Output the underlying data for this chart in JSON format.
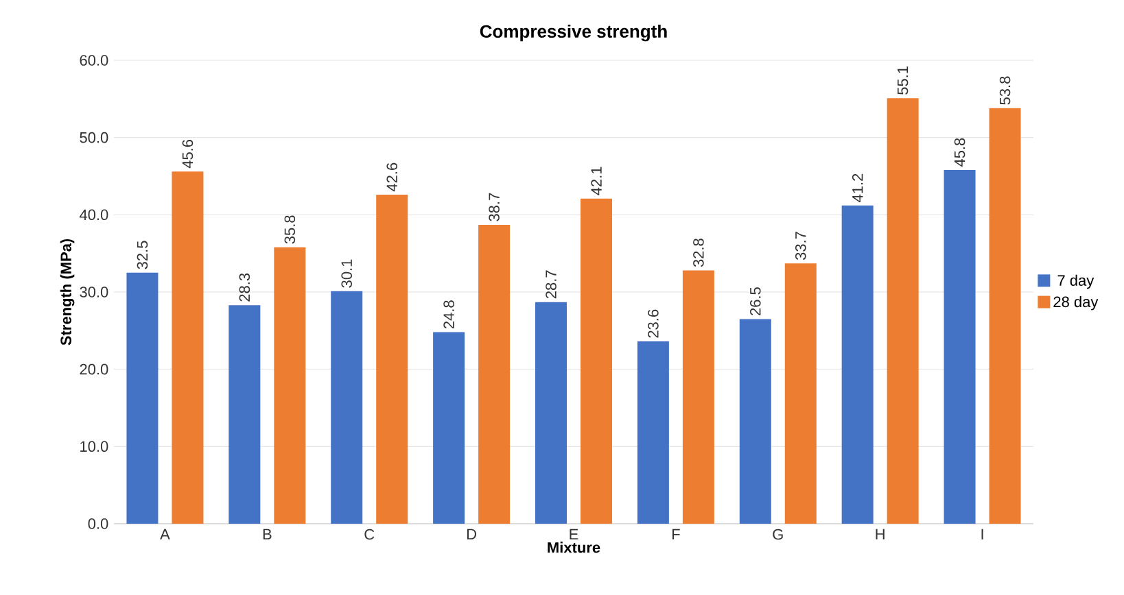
{
  "chart_data": {
    "type": "bar",
    "title": "Compressive strength",
    "xlabel": "Mixture",
    "ylabel": "Strength (MPa)",
    "categories": [
      "A",
      "B",
      "C",
      "D",
      "E",
      "F",
      "G",
      "H",
      "I"
    ],
    "series": [
      {
        "name": "7 day",
        "color": "#4472c4",
        "values": [
          32.5,
          28.3,
          30.1,
          24.8,
          28.7,
          23.6,
          26.5,
          41.2,
          45.8
        ]
      },
      {
        "name": "28 day",
        "color": "#ed7d31",
        "values": [
          45.6,
          35.8,
          42.6,
          38.7,
          42.1,
          32.8,
          33.7,
          55.1,
          53.8
        ]
      }
    ],
    "ylim": [
      0,
      60
    ],
    "yticks": [
      {
        "value": 0,
        "label": "0.0"
      },
      {
        "value": 10,
        "label": "10.0"
      },
      {
        "value": 20,
        "label": "20.0"
      },
      {
        "value": 30,
        "label": "30.0"
      },
      {
        "value": 40,
        "label": "40.0"
      },
      {
        "value": 50,
        "label": "50.0"
      },
      {
        "value": 60,
        "label": "60.0"
      }
    ],
    "grid": "y",
    "legend": "right",
    "data_labels": true
  }
}
